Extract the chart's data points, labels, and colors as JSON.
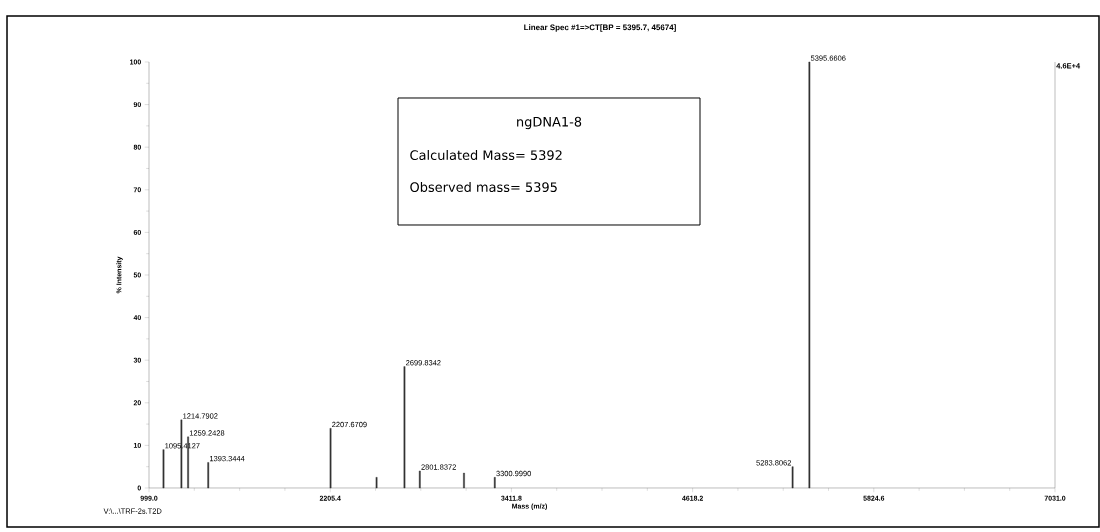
{
  "chart_data": {
    "type": "bar",
    "title": "Linear Spec #1=>CT[BP = 5395.7, 45674]",
    "xlabel": "Mass (m/z)",
    "ylabel": "% Intensity",
    "x": [
      1095.4127,
      1214.7902,
      1259.2428,
      1393.3444,
      2207.6709,
      2514,
      2699.8342,
      2801.8372,
      3096,
      3300.999,
      5283.8062,
      5395.6606
    ],
    "values": [
      9,
      16,
      12,
      6,
      14,
      2.5,
      28.5,
      4,
      3.5,
      2.5,
      5,
      100
    ],
    "color": "#333333",
    "xlim": [
      999.0,
      7031.0
    ],
    "xticks": [
      {
        "value": 999.0,
        "label": "999.0"
      },
      {
        "value": 2205.4,
        "label": "2205.4"
      },
      {
        "value": 3411.8,
        "label": "3411.8"
      },
      {
        "value": 4618.2,
        "label": "4618.2"
      },
      {
        "value": 5824.6,
        "label": "5824.6"
      },
      {
        "value": 7031.0,
        "label": "7031.0"
      }
    ],
    "ylim": [
      0,
      100
    ],
    "yticks": [
      0,
      10,
      20,
      30,
      40,
      50,
      60,
      70,
      80,
      90,
      100
    ],
    "annotations": [
      "ngDNA1-8",
      "Calculated Mass= 5392",
      "Observed mass=   5395",
      "4.6E+4",
      "V:\\...\\TRF-2s.T2D",
      {
        "text": "1095.4127",
        "x": 1095.4127,
        "y": 9
      },
      {
        "text": "1214.7902",
        "x": 1214.7902,
        "y": 16
      },
      {
        "text": "1259.2428",
        "x": 1259.2428,
        "y": 12
      },
      {
        "text": "1393.3444",
        "x": 1393.3444,
        "y": 6
      },
      {
        "text": "2207.6709",
        "x": 2207.6709,
        "y": 14
      },
      {
        "text": "2699.8342",
        "x": 2699.8342,
        "y": 28.5
      },
      {
        "text": "2801.8372",
        "x": 2801.8372,
        "y": 4
      },
      {
        "text": "3300.9990",
        "x": 3300.999,
        "y": 2.5
      },
      {
        "text": "5283.8062",
        "x": 5283.8062,
        "y": 5
      },
      {
        "text": "5395.6606",
        "x": 5395.6606,
        "y": 100
      }
    ]
  }
}
